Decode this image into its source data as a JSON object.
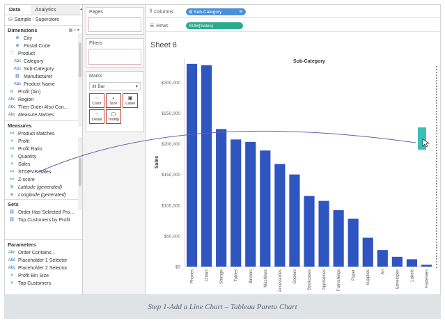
{
  "data_pane": {
    "tab_data": "Data",
    "tab_analytics": "Analytics",
    "datasource": "Sample - Superstore",
    "dimensions_header": "Dimensions",
    "dimensions": [
      {
        "label": "City",
        "icon": "globe-icon",
        "indent": true
      },
      {
        "label": "Postal Code",
        "icon": "globe-icon",
        "indent": true
      },
      {
        "label": "Product",
        "icon": "hierarchy-icon",
        "indent": false
      },
      {
        "label": "Category",
        "icon": "abc-icon",
        "indent": true
      },
      {
        "label": "Sub-Category",
        "icon": "abc-icon",
        "indent": true
      },
      {
        "label": "Manufacturer",
        "icon": "link-icon",
        "indent": true
      },
      {
        "label": "Product Name",
        "icon": "abc-icon",
        "indent": true
      },
      {
        "label": "Profit (bin)",
        "icon": "bin-icon",
        "indent": false
      },
      {
        "label": "Region",
        "icon": "abc-icon",
        "indent": false
      },
      {
        "label": "Then Order Also Con...",
        "icon": "abc-icon",
        "indent": false
      },
      {
        "label": "Measure Names",
        "icon": "abc-icon",
        "indent": false,
        "italic": true
      }
    ],
    "measures_header": "Measures",
    "measures": [
      {
        "label": "Product Matches",
        "icon": "calc-icon"
      },
      {
        "label": "Profit",
        "icon": "hash-icon"
      },
      {
        "label": "Profit Ratio",
        "icon": "calc-icon"
      },
      {
        "label": "Quantity",
        "icon": "hash-icon"
      },
      {
        "label": "Sales",
        "icon": "hash-icon"
      },
      {
        "label": "STDEVP Sales",
        "icon": "calc-icon"
      },
      {
        "label": "Z-score",
        "icon": "calc-icon"
      },
      {
        "label": "Latitude (generated)",
        "icon": "globe-icon",
        "italic": true
      },
      {
        "label": "Longitude (generated)",
        "icon": "globe-icon",
        "italic": true
      }
    ],
    "sets_header": "Sets",
    "sets": [
      {
        "label": "Order Has Selected Pro..."
      },
      {
        "label": "Top Customers by Profit"
      }
    ],
    "parameters_header": "Parameters",
    "parameters": [
      {
        "label": "Order Contains...",
        "icon": "abc-icon"
      },
      {
        "label": "Placeholder 1 Selector",
        "icon": "abc-icon"
      },
      {
        "label": "Placeholder 2 Selector",
        "icon": "abc-icon"
      },
      {
        "label": "Profit Bin Size",
        "icon": "hash-icon"
      },
      {
        "label": "Top Customers",
        "icon": "hash-icon"
      }
    ]
  },
  "shelves": {
    "pages_label": "Pages",
    "filters_label": "Filters",
    "marks_label": "Marks",
    "mark_type": "Bar",
    "mark_buttons": [
      {
        "label": "Color",
        "glyph": "⁘"
      },
      {
        "label": "Size",
        "glyph": "⌕"
      },
      {
        "label": "Label",
        "glyph": "▣"
      },
      {
        "label": "Detail",
        "glyph": "⁘"
      },
      {
        "label": "Tooltip",
        "glyph": "▢"
      }
    ]
  },
  "view": {
    "columns_label": "Columns",
    "columns_pill": "Sub-Category",
    "rows_label": "Rows",
    "rows_pill": "SUM(Sales)",
    "sheet_title": "Sheet 8",
    "colors": {
      "bar": "#2e55c0",
      "pill_blue": "#4a90d9",
      "pill_green": "#2bab8e",
      "drop_target": "#3cbfb4",
      "drag_line": "#6a5fb0"
    }
  },
  "chart_data": {
    "type": "bar",
    "title": "Sub-Category",
    "xlabel": "",
    "ylabel": "Sales",
    "ylim": [
      0,
      340000
    ],
    "yticks": [
      0,
      50000,
      100000,
      150000,
      200000,
      250000,
      300000
    ],
    "ytick_labels": [
      "$0",
      "$50,000",
      "$100,000",
      "$150,000",
      "$200,000",
      "$250,000",
      "$300,000"
    ],
    "categories": [
      "Phones",
      "Chairs",
      "Storage",
      "Tables",
      "Binders",
      "Machines",
      "Accessories",
      "Copiers",
      "Bookcases",
      "Appliances",
      "Furnishings",
      "Paper",
      "Supplies",
      "Art",
      "Envelopes",
      "Labels",
      "Fasteners"
    ],
    "values": [
      330000,
      328000,
      224000,
      207000,
      203000,
      189000,
      167000,
      150000,
      115000,
      107000,
      92000,
      78000,
      47000,
      27000,
      16000,
      12000,
      3000
    ]
  },
  "caption": "Step 1-Add a Line Chart – Tableau Pareto Chart"
}
